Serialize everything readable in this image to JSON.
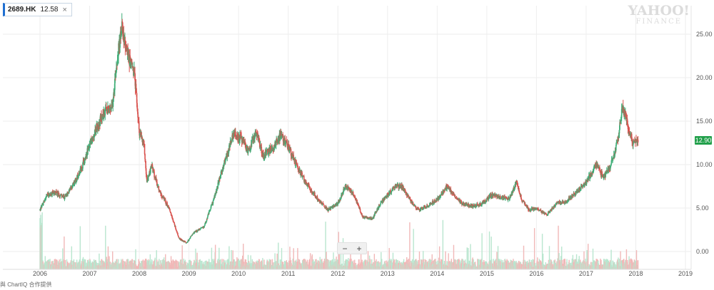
{
  "symbol": {
    "ticker": "2689.HK",
    "price": "12.58",
    "close_glyph": "×"
  },
  "brand": {
    "line1": "YAHOO!",
    "line2": "FINANCE"
  },
  "last_price_label": "12.90",
  "credit": "與 ChartIQ 合作提供",
  "zoom": {
    "minus": "−",
    "plus": "+"
  },
  "colors": {
    "up": "#3fae78",
    "down": "#d9534f",
    "vol_up": "#b9e6cf",
    "vol_down": "#f1b8b8",
    "grid": "#eeeeee",
    "badge": "#22a04b"
  },
  "chart_data": {
    "type": "candlestick",
    "title": "2689.HK",
    "x_range": [
      2006,
      2019
    ],
    "ylim": [
      -1,
      27.5
    ],
    "yticks": [
      {
        "v": 25,
        "label": "25.00"
      },
      {
        "v": 20,
        "label": "20.00"
      },
      {
        "v": 15,
        "label": "15.00"
      },
      {
        "v": 10,
        "label": "10.00"
      },
      {
        "v": 5,
        "label": "5.00"
      },
      {
        "v": 0,
        "label": "0.00"
      }
    ],
    "xticks": [
      "2006",
      "2007",
      "2008",
      "2009",
      "2010",
      "2011",
      "2012",
      "2013",
      "2014",
      "2015",
      "2016",
      "2017",
      "2018",
      "2019"
    ],
    "approx_close_path": [
      [
        2006.0,
        4.8
      ],
      [
        2006.15,
        6.5
      ],
      [
        2006.3,
        6.8
      ],
      [
        2006.5,
        6.2
      ],
      [
        2006.7,
        8.0
      ],
      [
        2006.85,
        9.8
      ],
      [
        2007.0,
        12.3
      ],
      [
        2007.15,
        14.5
      ],
      [
        2007.3,
        16.0
      ],
      [
        2007.45,
        16.5
      ],
      [
        2007.55,
        22.0
      ],
      [
        2007.65,
        25.8
      ],
      [
        2007.75,
        23.0
      ],
      [
        2007.9,
        20.5
      ],
      [
        2008.0,
        13.8
      ],
      [
        2008.1,
        12.0
      ],
      [
        2008.15,
        8.0
      ],
      [
        2008.25,
        9.8
      ],
      [
        2008.4,
        7.0
      ],
      [
        2008.6,
        5.0
      ],
      [
        2008.8,
        1.5
      ],
      [
        2008.95,
        1.0
      ],
      [
        2009.1,
        2.2
      ],
      [
        2009.3,
        2.8
      ],
      [
        2009.5,
        6.0
      ],
      [
        2009.7,
        10.0
      ],
      [
        2009.9,
        13.5
      ],
      [
        2010.05,
        13.0
      ],
      [
        2010.2,
        11.5
      ],
      [
        2010.35,
        13.8
      ],
      [
        2010.5,
        11.0
      ],
      [
        2010.7,
        12.0
      ],
      [
        2010.85,
        13.5
      ],
      [
        2011.0,
        12.0
      ],
      [
        2011.2,
        9.5
      ],
      [
        2011.4,
        7.5
      ],
      [
        2011.6,
        6.0
      ],
      [
        2011.8,
        4.8
      ],
      [
        2012.0,
        5.5
      ],
      [
        2012.15,
        7.5
      ],
      [
        2012.3,
        6.8
      ],
      [
        2012.5,
        4.0
      ],
      [
        2012.7,
        3.8
      ],
      [
        2012.85,
        5.5
      ],
      [
        2013.0,
        6.5
      ],
      [
        2013.15,
        7.5
      ],
      [
        2013.3,
        7.5
      ],
      [
        2013.45,
        6.0
      ],
      [
        2013.6,
        4.8
      ],
      [
        2013.8,
        5.2
      ],
      [
        2014.0,
        6.0
      ],
      [
        2014.2,
        7.5
      ],
      [
        2014.35,
        6.5
      ],
      [
        2014.5,
        5.5
      ],
      [
        2014.7,
        5.2
      ],
      [
        2014.9,
        5.5
      ],
      [
        2015.1,
        6.5
      ],
      [
        2015.3,
        6.2
      ],
      [
        2015.45,
        6.0
      ],
      [
        2015.6,
        8.0
      ],
      [
        2015.7,
        6.0
      ],
      [
        2015.85,
        4.8
      ],
      [
        2016.0,
        5.0
      ],
      [
        2016.2,
        4.2
      ],
      [
        2016.4,
        5.5
      ],
      [
        2016.6,
        5.8
      ],
      [
        2016.8,
        6.8
      ],
      [
        2017.0,
        8.0
      ],
      [
        2017.2,
        10.0
      ],
      [
        2017.35,
        8.5
      ],
      [
        2017.5,
        10.0
      ],
      [
        2017.65,
        13.0
      ],
      [
        2017.72,
        16.5
      ],
      [
        2017.78,
        16.0
      ],
      [
        2017.85,
        14.0
      ],
      [
        2017.95,
        12.5
      ],
      [
        2018.05,
        12.9
      ]
    ],
    "last_value": 12.9
  }
}
